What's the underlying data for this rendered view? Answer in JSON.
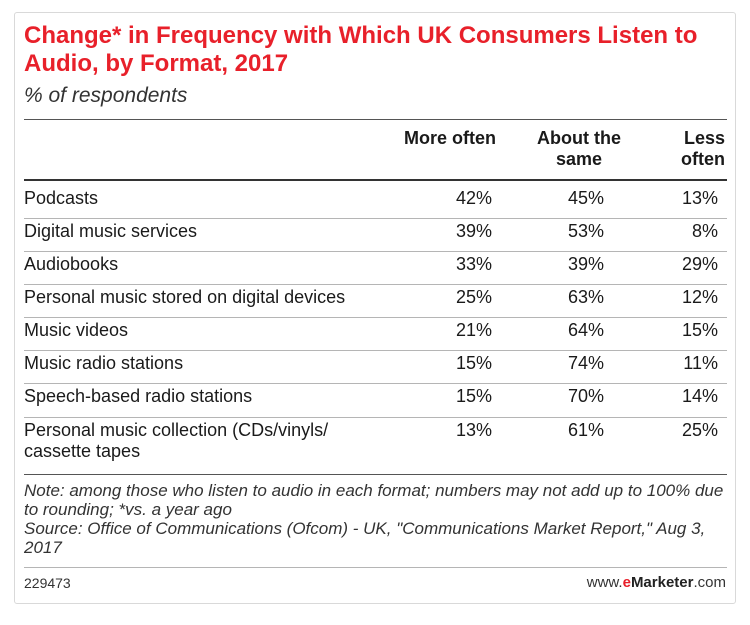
{
  "title": "Change* in Frequency with Which UK Consumers Listen to Audio, by Format, 2017",
  "subtitle": "% of respondents",
  "columns": [
    "More often",
    "About the same",
    "Less often"
  ],
  "note": "Note: among those who listen to audio in each format; numbers may not add up to 100% due to rounding; *vs. a year ago",
  "source": "Source: Office of Communications (Ofcom) - UK, \"Communications Market Report,\" Aug 3, 2017",
  "footer": {
    "id": "229473",
    "brand_prefix": "www.",
    "brand_e": "e",
    "brand_name": "Marketer",
    "brand_suffix": ".com"
  },
  "chart_data": {
    "type": "table",
    "title": "Change* in Frequency with Which UK Consumers Listen to Audio, by Format, 2017",
    "subtitle": "% of respondents",
    "columns": [
      "More often",
      "About the same",
      "Less often"
    ],
    "rows": [
      {
        "label": "Podcasts",
        "values": [
          "42%",
          "45%",
          "13%"
        ]
      },
      {
        "label": "Digital music services",
        "values": [
          "39%",
          "53%",
          "8%"
        ]
      },
      {
        "label": "Audiobooks",
        "values": [
          "33%",
          "39%",
          "29%"
        ]
      },
      {
        "label": "Personal music stored on digital devices",
        "values": [
          "25%",
          "63%",
          "12%"
        ]
      },
      {
        "label": "Music videos",
        "values": [
          "21%",
          "64%",
          "15%"
        ]
      },
      {
        "label": "Music radio stations",
        "values": [
          "15%",
          "74%",
          "11%"
        ]
      },
      {
        "label": "Speech-based radio stations",
        "values": [
          "15%",
          "70%",
          "14%"
        ]
      },
      {
        "label": "Personal music collection (CDs/vinyls/ cassette tapes",
        "values": [
          "13%",
          "61%",
          "25%"
        ]
      }
    ]
  }
}
